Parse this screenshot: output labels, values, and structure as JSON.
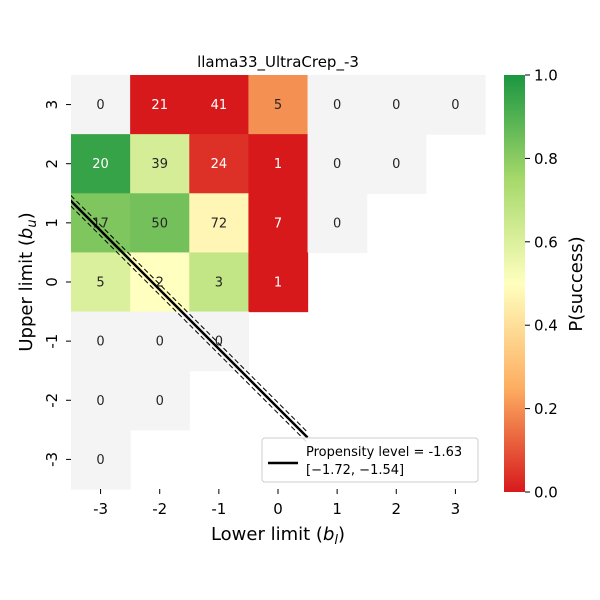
{
  "chart_data": {
    "type": "heatmap",
    "title": "llama33_UltraCrep_-3",
    "xlabel": "Lower limit (b_l)",
    "ylabel": "Upper limit (b_u)",
    "xlabel_text": "Lower limit (",
    "xlabel_var": "b",
    "xlabel_sub": "l",
    "ylabel_text": "Upper limit (",
    "ylabel_var": "b",
    "ylabel_sub": "u",
    "x_ticks": [
      "-3",
      "-2",
      "-1",
      "0",
      "1",
      "2",
      "3"
    ],
    "y_ticks": [
      "3",
      "2",
      "1",
      "0",
      "-1",
      "-2",
      "-3"
    ],
    "cells": [
      {
        "x": "-3",
        "y": "3",
        "count": "0",
        "p": null
      },
      {
        "x": "-2",
        "y": "3",
        "count": "21",
        "p": 0.0
      },
      {
        "x": "-1",
        "y": "3",
        "count": "41",
        "p": 0.0
      },
      {
        "x": "0",
        "y": "3",
        "count": "5",
        "p": 0.2
      },
      {
        "x": "1",
        "y": "3",
        "count": "0",
        "p": null
      },
      {
        "x": "2",
        "y": "3",
        "count": "0",
        "p": null
      },
      {
        "x": "3",
        "y": "3",
        "count": "0",
        "p": null
      },
      {
        "x": "-3",
        "y": "2",
        "count": "20",
        "p": 0.95
      },
      {
        "x": "-2",
        "y": "2",
        "count": "39",
        "p": 0.62
      },
      {
        "x": "-1",
        "y": "2",
        "count": "24",
        "p": 0.04
      },
      {
        "x": "0",
        "y": "2",
        "count": "1",
        "p": 0.0
      },
      {
        "x": "1",
        "y": "2",
        "count": "0",
        "p": null
      },
      {
        "x": "2",
        "y": "2",
        "count": "0",
        "p": null
      },
      {
        "x": "-3",
        "y": "1",
        "count": "17",
        "p": 0.82
      },
      {
        "x": "-2",
        "y": "1",
        "count": "50",
        "p": 0.84
      },
      {
        "x": "-1",
        "y": "1",
        "count": "72",
        "p": 0.47
      },
      {
        "x": "0",
        "y": "1",
        "count": "7",
        "p": 0.0
      },
      {
        "x": "1",
        "y": "1",
        "count": "0",
        "p": null
      },
      {
        "x": "-3",
        "y": "0",
        "count": "5",
        "p": 0.6
      },
      {
        "x": "-2",
        "y": "0",
        "count": "2",
        "p": 0.5
      },
      {
        "x": "-1",
        "y": "0",
        "count": "3",
        "p": 0.67
      },
      {
        "x": "0",
        "y": "0",
        "count": "1",
        "p": 0.0
      },
      {
        "x": "-3",
        "y": "-1",
        "count": "0",
        "p": null
      },
      {
        "x": "-2",
        "y": "-1",
        "count": "0",
        "p": null
      },
      {
        "x": "-1",
        "y": "-1",
        "count": "0",
        "p": null
      },
      {
        "x": "-3",
        "y": "-2",
        "count": "0",
        "p": null
      },
      {
        "x": "-2",
        "y": "-2",
        "count": "0",
        "p": null
      },
      {
        "x": "-3",
        "y": "-3",
        "count": "0",
        "p": null
      }
    ],
    "propensity_line": {
      "level": -1.63,
      "ci": [
        -1.72,
        -1.54
      ],
      "legend_label": "Propensity level = -1.63",
      "legend_ci": "[−1.72, −1.54]"
    },
    "colorbar": {
      "label": "P(success)",
      "range": [
        0.0,
        1.0
      ],
      "ticks": [
        "0.0",
        "0.2",
        "0.4",
        "0.6",
        "0.8",
        "1.0"
      ],
      "colors": [
        "#d7191c",
        "#fdae61",
        "#ffffbf",
        "#a6d96a",
        "#1a9641"
      ]
    },
    "missing_color": "#f4f4f4"
  }
}
